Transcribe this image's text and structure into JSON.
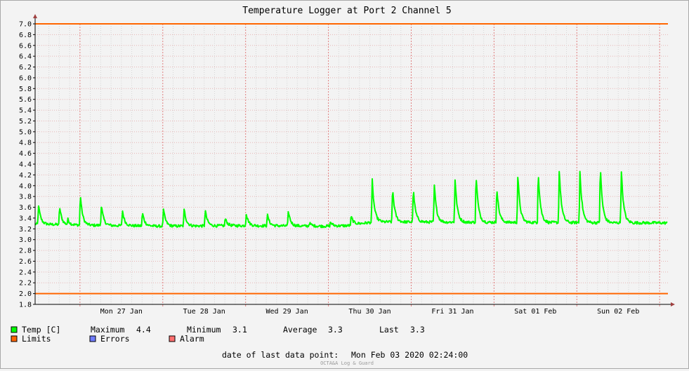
{
  "chart_data": {
    "type": "line",
    "title": "Temperature Logger at Port 2 Channel 5",
    "xlabel": "",
    "ylabel": "",
    "ylim": [
      1.8,
      7.0
    ],
    "yticks": [
      1.8,
      2.0,
      2.2,
      2.4,
      2.6,
      2.8,
      3.0,
      3.2,
      3.4,
      3.6,
      3.8,
      4.0,
      4.2,
      4.4,
      4.6,
      4.8,
      5.0,
      5.2,
      5.4,
      5.6,
      5.8,
      6.0,
      6.2,
      6.4,
      6.6,
      6.8,
      7.0
    ],
    "ytick_labels": [
      "1.8",
      "2.0",
      "2.2",
      "2.4",
      "2.6",
      "2.8",
      "3.0",
      "3.2",
      "3.4",
      "3.6",
      "3.8",
      "4.0",
      "4.2",
      "4.4",
      "4.6",
      "4.8",
      "5.0",
      "5.2",
      "5.4",
      "5.6",
      "5.8",
      "6.0",
      "6.2",
      "6.4",
      "6.6",
      "6.8",
      "7.0"
    ],
    "xlim_hours": [
      -13,
      170.4
    ],
    "xticks": [
      {
        "label": "Mon 27 Jan",
        "hour": 12
      },
      {
        "label": "Tue 28 Jan",
        "hour": 36
      },
      {
        "label": "Wed 29 Jan",
        "hour": 60
      },
      {
        "label": "Thu 30 Jan",
        "hour": 84
      },
      {
        "label": "Fri 31 Jan",
        "hour": 108
      },
      {
        "label": "Sat 01 Feb",
        "hour": 132
      },
      {
        "label": "Sun 02 Feb",
        "hour": 156
      }
    ],
    "grid": true,
    "legend_position": "bottom",
    "series": [
      {
        "name": "Temp [C]",
        "color": "#00ff00",
        "baseline": [
          {
            "hour": -13,
            "value": 3.29
          },
          {
            "hour": 0,
            "value": 3.27
          },
          {
            "hour": 24,
            "value": 3.25
          },
          {
            "hour": 48,
            "value": 3.26
          },
          {
            "hour": 72,
            "value": 3.25
          },
          {
            "hour": 78,
            "value": 3.26
          },
          {
            "hour": 80,
            "value": 3.29
          },
          {
            "hour": 86,
            "value": 3.33
          },
          {
            "hour": 170.4,
            "value": 3.31
          }
        ],
        "peaks": [
          {
            "hour": -12.0,
            "value": 3.64
          },
          {
            "hour": -5.9,
            "value": 3.62
          },
          {
            "hour": -3.5,
            "value": 3.37
          },
          {
            "hour": 0.1,
            "value": 3.85
          },
          {
            "hour": 6.2,
            "value": 3.65
          },
          {
            "hour": 12.3,
            "value": 3.55
          },
          {
            "hour": 18.1,
            "value": 3.51
          },
          {
            "hour": 24.2,
            "value": 3.57
          },
          {
            "hour": 30.2,
            "value": 3.57
          },
          {
            "hour": 36.3,
            "value": 3.55
          },
          {
            "hour": 42.1,
            "value": 3.4
          },
          {
            "hour": 48.2,
            "value": 3.49
          },
          {
            "hour": 54.3,
            "value": 3.47
          },
          {
            "hour": 60.4,
            "value": 3.54
          },
          {
            "hour": 66.5,
            "value": 3.31
          },
          {
            "hour": 72.6,
            "value": 3.33
          },
          {
            "hour": 78.6,
            "value": 3.44
          },
          {
            "hour": 84.7,
            "value": 4.11
          },
          {
            "hour": 90.6,
            "value": 3.97
          },
          {
            "hour": 96.6,
            "value": 3.95
          },
          {
            "hour": 102.7,
            "value": 4.02
          },
          {
            "hour": 108.7,
            "value": 4.13
          },
          {
            "hour": 114.8,
            "value": 4.22
          },
          {
            "hour": 120.8,
            "value": 3.99
          },
          {
            "hour": 126.9,
            "value": 4.22
          },
          {
            "hour": 132.8,
            "value": 4.29
          },
          {
            "hour": 138.9,
            "value": 4.33
          },
          {
            "hour": 144.9,
            "value": 4.3
          },
          {
            "hour": 150.8,
            "value": 4.37
          },
          {
            "hour": 156.9,
            "value": 4.3
          }
        ]
      },
      {
        "name": "Limits",
        "color": "#ff6600",
        "values": [
          2.0,
          7.0
        ]
      }
    ],
    "legend": [
      {
        "label": "Temp [C]",
        "color": "#00ff00"
      },
      {
        "label": "Limits",
        "color": "#ff6600"
      },
      {
        "label": "Errors",
        "color": "#6f7cff"
      },
      {
        "label": "Alarm",
        "color": "#ff6f6f"
      }
    ],
    "stats": {
      "max_label": "Maximum",
      "max_value": "4.4",
      "min_label": "Minimum",
      "min_value": "3.1",
      "avg_label": "Average",
      "avg_value": "3.3",
      "last_label": "Last",
      "last_value": "3.3"
    },
    "footer": {
      "label": "date of last data point:",
      "value": "Mon Feb 03 2020 02:24:00"
    },
    "brand": "OCTA&A Log & Guard"
  }
}
